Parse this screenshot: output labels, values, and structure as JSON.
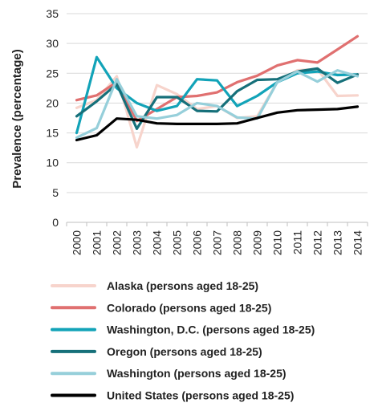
{
  "chart_data": {
    "type": "line",
    "title": "",
    "xlabel": "",
    "ylabel": "Prevalence (percentage)",
    "ylim": [
      0,
      35
    ],
    "yticks": [
      0,
      5,
      10,
      15,
      20,
      25,
      30,
      35
    ],
    "grid": "horizontal",
    "legend_position": "bottom",
    "x": [
      "2000",
      "2001",
      "2002",
      "2003",
      "2004",
      "2005",
      "2006",
      "2007",
      "2008",
      "2009",
      "2010",
      "2011",
      "2012",
      "2013",
      "2014"
    ],
    "series": [
      {
        "name": "Alaska (persons aged 18-25)",
        "color": "#f7d4cc",
        "values": [
          19.2,
          20.5,
          24.5,
          12.6,
          23.0,
          21.5,
          19.0,
          19.5,
          17.5,
          17.8,
          23.5,
          25.5,
          25.7,
          21.2,
          21.3
        ]
      },
      {
        "name": "Colorado (persons aged 18-25)",
        "color": "#e07070",
        "values": [
          20.5,
          21.3,
          23.5,
          17.0,
          19.0,
          21.0,
          21.2,
          21.8,
          23.5,
          24.6,
          26.3,
          27.2,
          26.8,
          29.0,
          31.2
        ]
      },
      {
        "name": "Washington, D.C. (persons aged 18-25)",
        "color": "#12a3b8",
        "values": [
          15.0,
          27.7,
          22.5,
          20.0,
          18.7,
          19.5,
          24.0,
          23.8,
          19.5,
          21.2,
          23.5,
          25.0,
          25.3,
          24.7,
          24.8
        ]
      },
      {
        "name": "Oregon (persons aged 18-25)",
        "color": "#16707a",
        "values": [
          17.8,
          20.3,
          23.2,
          15.7,
          21.0,
          21.0,
          18.7,
          18.6,
          22.0,
          23.9,
          24.0,
          25.3,
          25.8,
          23.4,
          24.8
        ]
      },
      {
        "name": "Washington (persons aged 18-25)",
        "color": "#96cfda",
        "values": [
          14.2,
          15.8,
          24.0,
          17.8,
          17.4,
          18.0,
          20.0,
          19.5,
          17.6,
          17.4,
          23.5,
          25.3,
          23.6,
          25.5,
          24.5
        ]
      },
      {
        "name": "United States (persons aged 18-25)",
        "color": "#000000",
        "values": [
          13.8,
          14.6,
          17.4,
          17.2,
          16.6,
          16.5,
          16.5,
          16.5,
          16.6,
          17.5,
          18.4,
          18.8,
          18.9,
          19.0,
          19.4
        ]
      }
    ]
  }
}
